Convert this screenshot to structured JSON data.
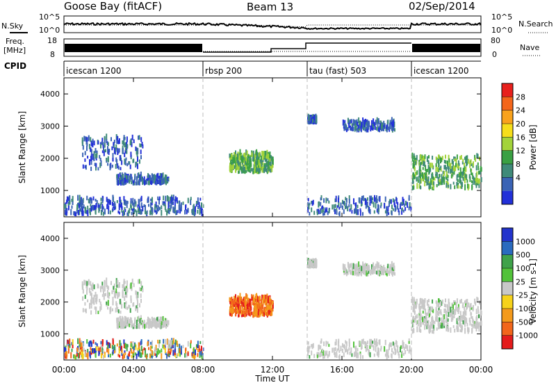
{
  "header": {
    "station": "Goose Bay (fitACF)",
    "beam": "Beam 13",
    "date": "02/Sep/2014"
  },
  "noise_panel": {
    "left_label": "N.Sky",
    "right_label": "N.Search",
    "left_ticks": [
      "10^5",
      "10^0"
    ],
    "right_ticks": [
      "10^5",
      "10^0"
    ]
  },
  "freq_panel": {
    "left_label_1": "Freq.",
    "left_label_2": "[MHz]",
    "left_ticks": [
      "18",
      "8"
    ],
    "right_label": "Nave",
    "right_ticks": [
      "80",
      "0"
    ]
  },
  "cpid": {
    "label": "CPID",
    "segments": [
      {
        "name": "icescan 1200",
        "start": 0,
        "end": 8
      },
      {
        "name": "rbsp 200",
        "start": 8,
        "end": 14
      },
      {
        "name": "tau (fast) 503",
        "start": 14,
        "end": 20
      },
      {
        "name": "icescan 1200",
        "start": 20,
        "end": 24
      }
    ]
  },
  "power_panel": {
    "ylabel": "Slant Range [km]",
    "colorbar_label": "Power [dB]",
    "colorbar_ticks": [
      "28",
      "24",
      "20",
      "16",
      "12",
      "8",
      "4"
    ],
    "colors": [
      "#e8201c",
      "#f4661b",
      "#f9a21c",
      "#f6de1a",
      "#a3d33a",
      "#3aa043",
      "#3f8a79",
      "#3a63b5",
      "#2230d8"
    ]
  },
  "velocity_panel": {
    "ylabel": "Slant Range [km]",
    "colorbar_label": "Velocity [m s-1]",
    "colorbar_ticks": [
      "1000",
      "500",
      "100",
      "25",
      "-25",
      "-100",
      "-500",
      "-1000"
    ],
    "colors": [
      "#2233cc",
      "#2a6bbf",
      "#3fa24a",
      "#52c23a",
      "#c8c8c8",
      "#f6d21a",
      "#f49a1b",
      "#f2661b",
      "#e41c1c"
    ]
  },
  "chart_data": {
    "type": "heatmap",
    "x_ticks": [
      "00:00",
      "04:00",
      "08:00",
      "12:00",
      "16:00",
      "20:00",
      "00:00"
    ],
    "xlabel": "Time UT",
    "xlim": [
      0,
      24
    ],
    "ylim": [
      180,
      4500
    ],
    "y_ticks": [
      1000,
      2000,
      3000,
      4000
    ],
    "mode_change_hours": [
      8,
      14,
      20
    ],
    "regions": [
      {
        "t": [
          0.0,
          8.0
        ],
        "r": [
          200,
          700
        ],
        "density": "high",
        "power": "low",
        "velocity": "mixed"
      },
      {
        "t": [
          1.0,
          4.5
        ],
        "r": [
          1600,
          2600
        ],
        "density": "medium",
        "power": "low",
        "velocity": "near-zero"
      },
      {
        "t": [
          3.0,
          6.0
        ],
        "r": [
          1150,
          1400
        ],
        "density": "medium",
        "power": "low",
        "velocity": "near-zero"
      },
      {
        "t": [
          9.5,
          12.0
        ],
        "r": [
          1500,
          2100
        ],
        "density": "high",
        "power": "medium",
        "velocity": "negative"
      },
      {
        "t": [
          14.0,
          20.0
        ],
        "r": [
          200,
          700
        ],
        "density": "medium",
        "power": "low",
        "velocity": "near-zero"
      },
      {
        "t": [
          14.0,
          14.5
        ],
        "r": [
          3050,
          3200
        ],
        "density": "medium",
        "power": "low",
        "velocity": "near-zero"
      },
      {
        "t": [
          16.0,
          19.0
        ],
        "r": [
          2800,
          3100
        ],
        "density": "medium",
        "power": "low",
        "velocity": "near-zero"
      },
      {
        "t": [
          20.0,
          24.0
        ],
        "r": [
          1000,
          2000
        ],
        "density": "high",
        "power": "medium",
        "velocity": "near-zero"
      }
    ]
  }
}
